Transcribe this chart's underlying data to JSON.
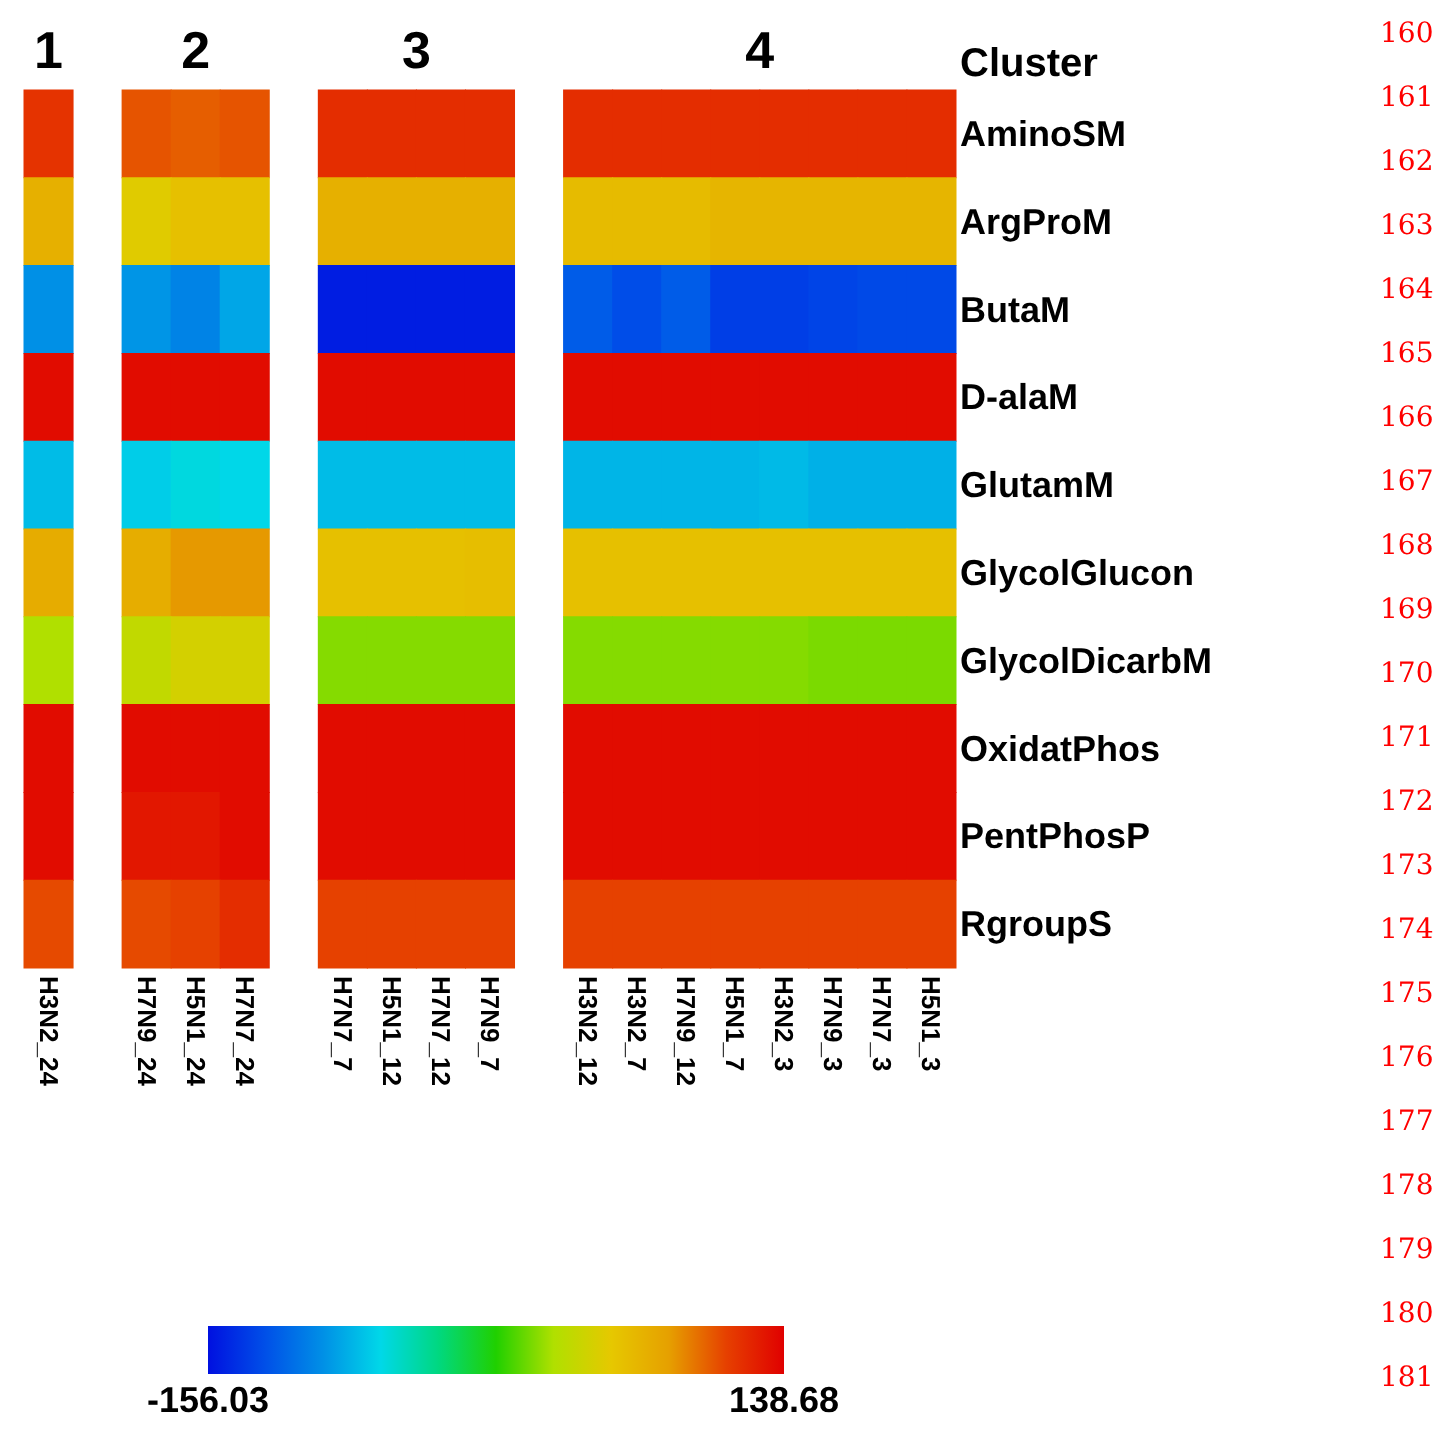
{
  "chart_data": {
    "type": "heatmap",
    "categories": [
      "H3N2_24",
      null,
      "H7N9_24",
      "H5N1_24",
      "H7N7_24",
      null,
      "H7N7_7",
      "H5N1_12",
      "H7N7_12",
      "H7N9_7",
      null,
      "H3N2_12",
      "H3N2_7",
      "H7N9_12",
      "H5N1_7",
      "H3N2_3",
      "H7N9_3",
      "H7N7_3",
      "H5N1_3"
    ],
    "y_categories": [
      "AminoSM",
      "ArgProM",
      "ButaM",
      "D-alaM",
      "GlutamM",
      "GlycolGlucon",
      "GlycolDicarbM",
      "OxidatPhos",
      "PentPhosP",
      "RgroupS"
    ],
    "ylabel": "Cluster",
    "cells": [
      [
        115,
        null,
        103,
        100,
        103,
        null,
        118,
        118,
        118,
        118,
        null,
        118,
        118,
        118,
        118,
        118,
        118,
        118,
        118
      ],
      [
        68,
        null,
        47,
        56,
        56,
        null,
        68,
        68,
        68,
        68,
        null,
        60,
        60,
        60,
        64,
        64,
        64,
        64,
        64
      ],
      [
        -97,
        null,
        -95,
        -103,
        -88,
        null,
        -150,
        -150,
        -150,
        -150,
        null,
        -121,
        -128,
        -121,
        -135,
        -135,
        -132,
        -130,
        -130
      ],
      [
        133,
        null,
        133,
        133,
        133,
        null,
        133,
        133,
        133,
        133,
        null,
        133,
        133,
        133,
        133,
        133,
        133,
        133,
        133
      ],
      [
        -79,
        null,
        -72,
        -65,
        -68,
        null,
        -79,
        -79,
        -79,
        -79,
        null,
        -82,
        -82,
        -82,
        -82,
        -80,
        -84,
        -84,
        -84
      ],
      [
        71,
        null,
        70,
        82,
        82,
        null,
        56,
        56,
        56,
        58,
        null,
        56,
        56,
        56,
        56,
        56,
        56,
        56,
        56
      ],
      [
        21,
        null,
        30,
        40,
        40,
        null,
        12,
        12,
        12,
        12,
        null,
        12,
        12,
        12,
        12,
        12,
        10,
        10,
        10
      ],
      [
        133,
        null,
        133,
        133,
        133,
        null,
        133,
        133,
        133,
        133,
        null,
        133,
        133,
        133,
        133,
        133,
        133,
        133,
        133
      ],
      [
        133,
        null,
        128,
        128,
        133,
        null,
        133,
        133,
        133,
        133,
        null,
        133,
        133,
        133,
        133,
        133,
        133,
        133,
        133
      ],
      [
        106,
        null,
        106,
        109,
        118,
        null,
        109,
        109,
        109,
        109,
        null,
        109,
        109,
        109,
        109,
        109,
        109,
        109,
        109
      ]
    ],
    "clim": [
      -156.03,
      138.68
    ],
    "cticks": [
      -156.03,
      138.68
    ],
    "annotations": [
      "1",
      "2",
      "3",
      "4",
      "160",
      "161",
      "162",
      "163",
      "164",
      "165",
      "166",
      "167",
      "168",
      "169",
      "170",
      "171",
      "172",
      "173",
      "174",
      "175",
      "176",
      "177",
      "178",
      "179",
      "180",
      "181"
    ]
  }
}
